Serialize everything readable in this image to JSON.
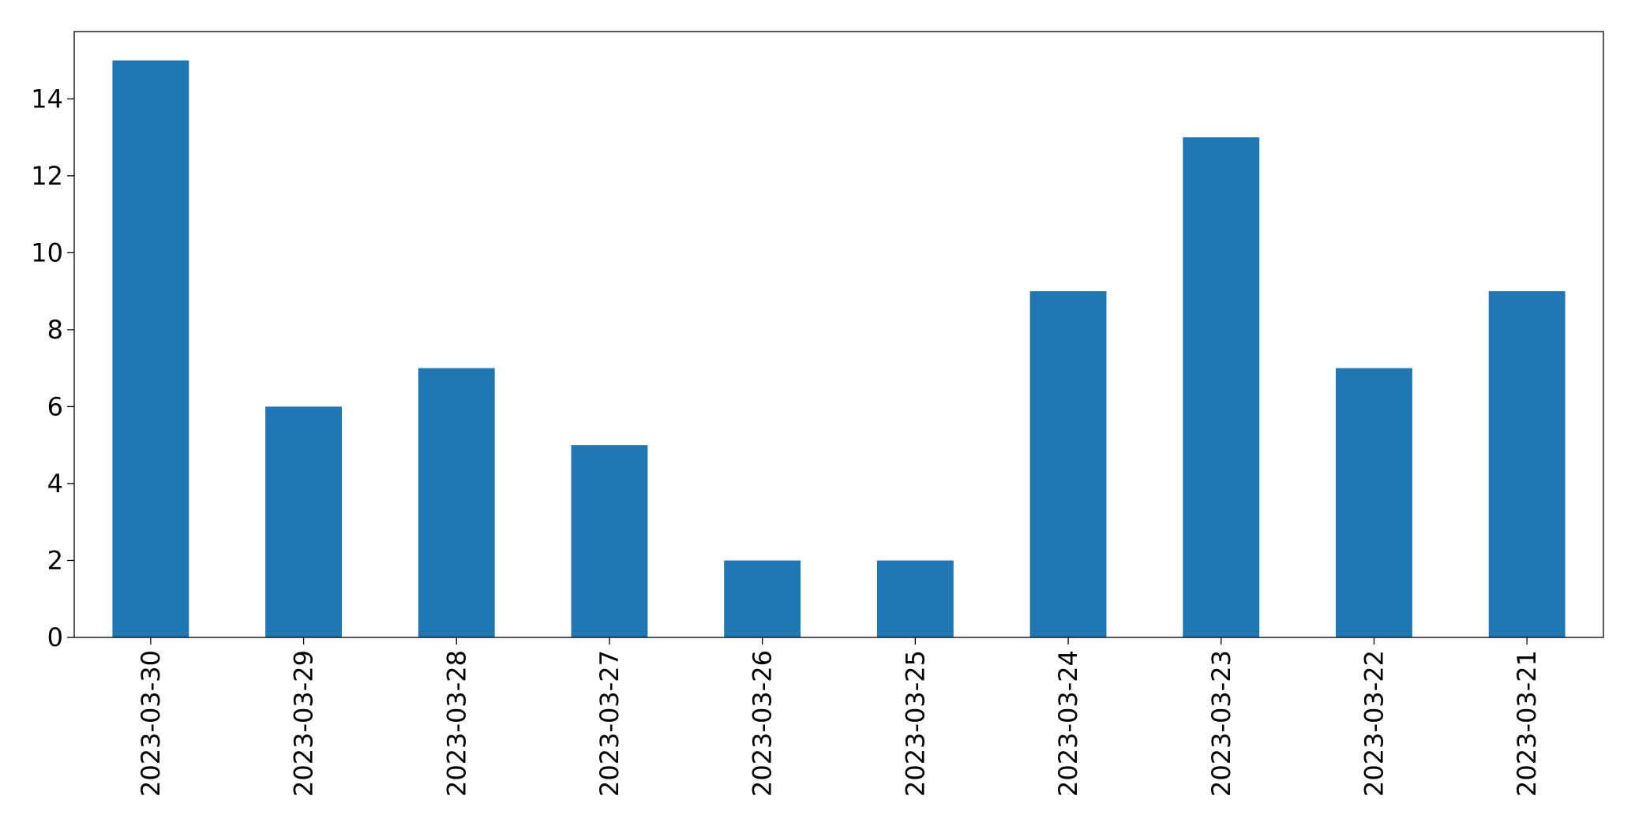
{
  "chart_data": {
    "type": "bar",
    "categories": [
      "2023-03-30",
      "2023-03-29",
      "2023-03-28",
      "2023-03-27",
      "2023-03-26",
      "2023-03-25",
      "2023-03-24",
      "2023-03-23",
      "2023-03-22",
      "2023-03-21"
    ],
    "values": [
      15,
      6,
      7,
      5,
      2,
      2,
      9,
      13,
      7,
      9
    ],
    "color": "#1f77b4",
    "ylim": [
      0,
      15.75
    ],
    "yticks": [
      0,
      2,
      4,
      6,
      8,
      10,
      12,
      14
    ],
    "grid": false
  }
}
